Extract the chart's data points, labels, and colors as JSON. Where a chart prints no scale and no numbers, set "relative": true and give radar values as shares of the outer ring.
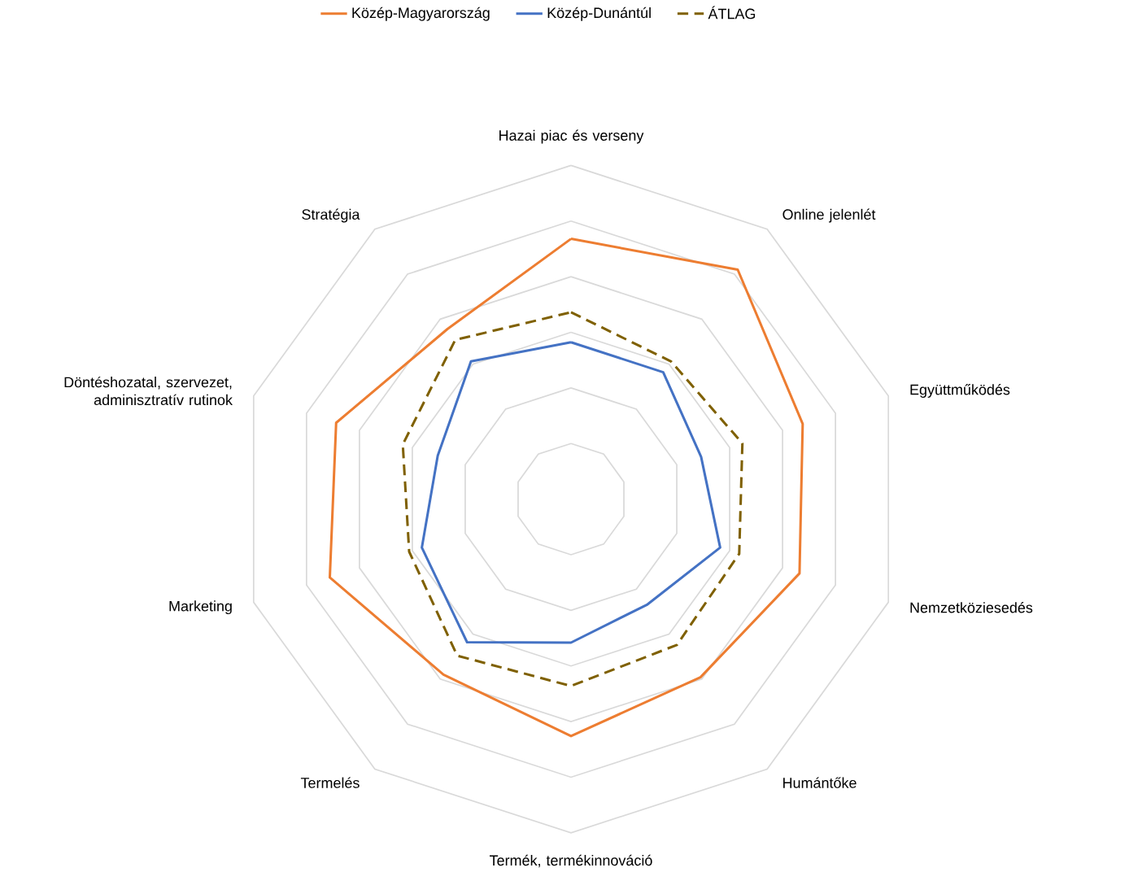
{
  "chart_data": {
    "type": "radar",
    "relative": true,
    "grid": true,
    "legend": "top",
    "marker": "none",
    "categories": [
      "Hazai piac és verseny",
      "Online jelenlét",
      "Együttműködés",
      "Nemzetköziesedés",
      "Humántőke",
      "Termék, termékinnováció",
      "Termelés",
      "Marketing",
      "Döntéshozatal, szervezet, adminisztratív rutinok",
      "Stratégia"
    ],
    "series": [
      {
        "name": "Közép-Magyarország",
        "color": "#ed7d31",
        "line_style": "solid",
        "values": [
          0.78,
          0.85,
          0.73,
          0.72,
          0.66,
          0.71,
          0.65,
          0.76,
          0.74,
          0.63
        ]
      },
      {
        "name": "Közép-Dunántúl",
        "color": "#4472c4",
        "line_style": "solid",
        "values": [
          0.47,
          0.47,
          0.41,
          0.47,
          0.39,
          0.43,
          0.53,
          0.47,
          0.42,
          0.51
        ]
      },
      {
        "name": "ÁTLAG",
        "color": "#7f6000",
        "line_style": "dashed",
        "values": [
          0.56,
          0.51,
          0.54,
          0.53,
          0.54,
          0.56,
          0.58,
          0.51,
          0.53,
          0.59
        ]
      }
    ]
  }
}
